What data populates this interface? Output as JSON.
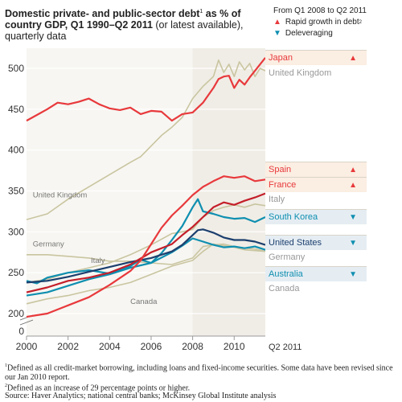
{
  "title": {
    "bold": "Domestic private- and public-sector debt",
    "sup": "1",
    "bold2": " as % of country GDP, Q1 1990–Q2 2011",
    "normal": " (or latest available), quarterly data"
  },
  "legend": {
    "period": "From Q1 2008 to Q2 2011",
    "rapid": "Rapid growth in debt",
    "rapid_sup": "2",
    "delev": "Deleveraging"
  },
  "colors": {
    "red": "#e8393c",
    "blue": "#0f8fb0",
    "navy": "#1c3f6e",
    "olive": "#c9c5a0",
    "darkred": "#c41f2a",
    "panel": "#f0ede6"
  },
  "countries": [
    {
      "name": "Japan",
      "status": "rapid"
    },
    {
      "name": "United Kingdom",
      "status": "none"
    },
    {
      "name": "Spain",
      "status": "rapid"
    },
    {
      "name": "France",
      "status": "rapid"
    },
    {
      "name": "Italy",
      "status": "none"
    },
    {
      "name": "South Korea",
      "status": "delev"
    },
    {
      "name": "United States",
      "status": "delev"
    },
    {
      "name": "Germany",
      "status": "none"
    },
    {
      "name": "Australia",
      "status": "delev"
    },
    {
      "name": "Canada",
      "status": "none"
    }
  ],
  "footnotes": {
    "f1_sup": "1",
    "f1": "Defined as all credit-market borrowing, including loans and fixed-income securities. Some data have been revised since our Jan 2010 report.",
    "f2_sup": "2",
    "f2": "Defined as an increase of 29 percentage points or higher.",
    "source": "Source: Haver Analytics; national central banks; McKinsey Global Institute analysis"
  },
  "chart_data": {
    "type": "line",
    "xlim": [
      2000,
      2011.5
    ],
    "ylim": [
      200,
      520
    ],
    "yticks": [
      200,
      250,
      300,
      350,
      400,
      450,
      500
    ],
    "ytick_zero": "0",
    "xticks": [
      "2000",
      "2002",
      "2004",
      "2006",
      "2008",
      "2010"
    ],
    "x_end_label": "Q2 2011",
    "shaded_from": 2008,
    "inline_labels": [
      {
        "text": "United Kingdom",
        "x": 2000.3,
        "y": 342
      },
      {
        "text": "Germany",
        "x": 2000.3,
        "y": 282
      },
      {
        "text": "Italy",
        "x": 2003.1,
        "y": 262
      },
      {
        "text": "Canada",
        "x": 2005.0,
        "y": 212
      }
    ],
    "series": [
      {
        "name": "Japan",
        "color": "#e8393c",
        "x": [
          2000,
          2000.5,
          2001,
          2001.5,
          2002,
          2002.5,
          2003,
          2003.5,
          2004,
          2004.5,
          2005,
          2005.5,
          2006,
          2006.5,
          2007,
          2007.5,
          2008,
          2008.5,
          2009,
          2009.25,
          2009.5,
          2009.75,
          2010,
          2010.25,
          2010.5,
          2010.75,
          2011,
          2011.5
        ],
        "y": [
          436,
          443,
          450,
          458,
          456,
          459,
          463,
          456,
          451,
          449,
          452,
          444,
          448,
          447,
          436,
          444,
          446,
          458,
          476,
          487,
          490,
          491,
          476,
          486,
          480,
          489,
          497,
          513
        ]
      },
      {
        "name": "United Kingdom",
        "color": "#c9c5a0",
        "x": [
          2000,
          2001,
          2002,
          2003,
          2004,
          2005,
          2005.5,
          2006,
          2006.5,
          2007,
          2007.5,
          2008,
          2008.5,
          2009,
          2009.25,
          2009.5,
          2009.75,
          2010,
          2010.25,
          2010.5,
          2010.75,
          2011,
          2011.25,
          2011.5
        ],
        "y": [
          315,
          322,
          340,
          355,
          370,
          385,
          392,
          405,
          418,
          428,
          440,
          463,
          478,
          490,
          510,
          495,
          505,
          490,
          508,
          498,
          506,
          490,
          500,
          497
        ]
      },
      {
        "name": "Spain",
        "color": "#e8393c",
        "x": [
          2000,
          2000.5,
          2001,
          2002,
          2003,
          2004,
          2005,
          2005.5,
          2006,
          2006.5,
          2007,
          2007.5,
          2008,
          2008.5,
          2009,
          2009.5,
          2010,
          2010.5,
          2011,
          2011.5
        ],
        "y": [
          196,
          198,
          200,
          210,
          220,
          235,
          252,
          265,
          285,
          305,
          320,
          332,
          345,
          355,
          362,
          368,
          366,
          368,
          362,
          364
        ]
      },
      {
        "name": "France",
        "color": "#c41f2a",
        "x": [
          2000,
          2001,
          2002,
          2003,
          2004,
          2005,
          2006,
          2007,
          2007.5,
          2008,
          2008.5,
          2009,
          2009.5,
          2010,
          2010.5,
          2011,
          2011.5
        ],
        "y": [
          226,
          232,
          240,
          244,
          250,
          260,
          275,
          285,
          296,
          306,
          318,
          330,
          336,
          333,
          338,
          342,
          347
        ]
      },
      {
        "name": "Italy",
        "color": "#c9c5a0",
        "x": [
          2000,
          2001,
          2002,
          2003,
          2004,
          2005,
          2006,
          2007,
          2007.5,
          2008,
          2008.5,
          2009,
          2009.5,
          2010,
          2010.5,
          2011,
          2011.5
        ],
        "y": [
          238,
          242,
          250,
          256,
          262,
          272,
          284,
          298,
          300,
          303,
          318,
          326,
          330,
          333,
          330,
          334,
          332
        ]
      },
      {
        "name": "South Korea",
        "color": "#0f8fb0",
        "x": [
          2000,
          2000.5,
          2001,
          2002,
          2003,
          2004,
          2005,
          2005.5,
          2006,
          2006.5,
          2007,
          2007.5,
          2008,
          2008.25,
          2008.5,
          2009,
          2009.5,
          2010,
          2010.5,
          2011,
          2011.5
        ],
        "y": [
          240,
          237,
          244,
          250,
          253,
          249,
          258,
          266,
          262,
          274,
          290,
          307,
          330,
          340,
          325,
          322,
          318,
          316,
          317,
          312,
          318
        ]
      },
      {
        "name": "United States",
        "color": "#1c3f6e",
        "x": [
          2000,
          2001,
          2002,
          2003,
          2004,
          2005,
          2006,
          2007,
          2007.5,
          2008,
          2008.25,
          2008.5,
          2009,
          2009.5,
          2010,
          2010.5,
          2011,
          2011.5
        ],
        "y": [
          238,
          240,
          245,
          251,
          257,
          263,
          268,
          276,
          284,
          296,
          302,
          303,
          299,
          293,
          290,
          290,
          288,
          284
        ]
      },
      {
        "name": "Germany",
        "color": "#c9c5a0",
        "x": [
          2000,
          2001,
          2002,
          2003,
          2004,
          2005,
          2006,
          2007,
          2008,
          2008.5,
          2009,
          2009.5,
          2010,
          2010.5,
          2011,
          2011.5
        ],
        "y": [
          272,
          272,
          270,
          268,
          264,
          264,
          262,
          260,
          268,
          282,
          284,
          285,
          282,
          280,
          279,
          276
        ]
      },
      {
        "name": "Australia",
        "color": "#0f8fb0",
        "x": [
          2000,
          2001,
          2002,
          2003,
          2004,
          2005,
          2006,
          2007,
          2007.5,
          2008,
          2008.5,
          2009,
          2009.5,
          2010,
          2010.5,
          2011,
          2011.5
        ],
        "y": [
          222,
          226,
          234,
          242,
          248,
          256,
          262,
          275,
          283,
          292,
          288,
          284,
          281,
          282,
          280,
          282,
          278
        ]
      },
      {
        "name": "Canada",
        "color": "#c9c5a0",
        "x": [
          2000,
          2001,
          2002,
          2003,
          2004,
          2005,
          2006,
          2007,
          2008,
          2008.5,
          2009,
          2009.5,
          2010,
          2010.5,
          2011,
          2011.5
        ],
        "y": [
          212,
          218,
          222,
          228,
          232,
          238,
          248,
          258,
          265,
          276,
          285,
          283,
          281,
          278,
          277,
          276
        ]
      }
    ]
  }
}
